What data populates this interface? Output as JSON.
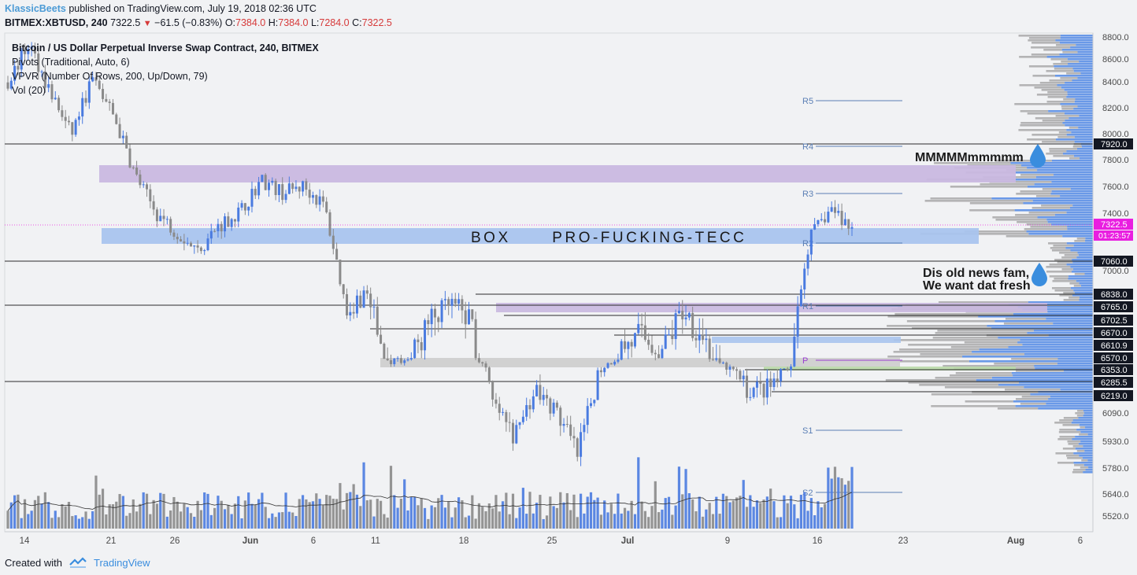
{
  "header": {
    "author": "KlassicBeets",
    "published_text": "published on TradingView.com, July 19, 2018 02:36 UTC",
    "symbol": "BITMEX:XBTUSD, 240",
    "last": "7322.5",
    "change": "−61.5 (−0.83%)",
    "o_label": "O:",
    "o_value": "7384.0",
    "h_label": "H:",
    "h_value": "7384.0",
    "l_label": "L:",
    "l_value": "7284.0",
    "c_label": "C:",
    "c_value": "7322.5"
  },
  "legend": {
    "title": "Bitcoin / US Dollar Perpetual Inverse Swap Contract, 240, BITMEX",
    "pivots": "Pivots (Traditional, Auto, 6)",
    "vpvr": "VPVR (Number Of Rows, 200, Up/Down, 79)",
    "vol": "Vol (20)"
  },
  "footer": {
    "created_with": "Created with",
    "brand": "TradingView"
  },
  "colors": {
    "bg": "#f1f2f4",
    "up": "#4a7be0",
    "down": "#8a8a8a",
    "box_blue": "#a9c4ee",
    "box_purple": "#c9b8e0",
    "box_gray": "#cfcfcf",
    "pivot_line": "#5b7fb5",
    "annotation_text": "#1a1a1a",
    "drop_icon": "#3a8dde",
    "last_price_label": "#e91ee0"
  },
  "chart_data": {
    "type": "candlestick",
    "title": "Bitcoin / US Dollar Perpetual Inverse Swap Contract, 240, BITMEX",
    "x_tick_labels": [
      "14",
      "21",
      "26",
      "Jun",
      "6",
      "11",
      "18",
      "25",
      "Jul",
      "9",
      "16",
      "23",
      "Aug",
      "6"
    ],
    "y_tick_labels": [
      "8800.0",
      "8600.0",
      "8400.0",
      "8200.0",
      "8000.0",
      "7800.0",
      "7600.0",
      "7400.0",
      "7000.0",
      "6090.0",
      "5930.0",
      "5780.0",
      "5640.0",
      "5520.0"
    ],
    "highlighted_levels": [
      "7920.0",
      "7060.0",
      "6838.0",
      "6765.0",
      "6702.5",
      "6670.0",
      "6610.9",
      "6570.0",
      "6353.0",
      "6285.5",
      "6219.0"
    ],
    "last_price_label": "7322.5",
    "countdown_label": "01:23:57",
    "pivot_labels": [
      "R5",
      "R4",
      "R3",
      "R2",
      "R1",
      "P",
      "S1",
      "S2"
    ],
    "price_path": [
      [
        "14",
        8450
      ],
      [
        "15",
        8750
      ],
      [
        "17",
        8380
      ],
      [
        "19",
        8050
      ],
      [
        "21",
        8480
      ],
      [
        "22",
        8200
      ],
      [
        "23",
        7750
      ],
      [
        "24",
        7450
      ],
      [
        "26",
        7300
      ],
      [
        "28",
        7150
      ],
      [
        "29",
        7350
      ],
      [
        "Jun 1",
        7450
      ],
      [
        "Jun 4",
        7700
      ],
      [
        "Jun 6",
        7600
      ],
      [
        "Jun 8",
        7650
      ],
      [
        "Jun 10",
        7500
      ],
      [
        "Jun 11",
        6750
      ],
      [
        "Jun 12",
        6850
      ],
      [
        "Jun 14",
        6500
      ],
      [
        "Jun 16",
        6550
      ],
      [
        "Jun 18",
        6700
      ],
      [
        "Jun 20",
        6780
      ],
      [
        "Jun 22",
        6700
      ],
      [
        "Jun 23",
        6150
      ],
      [
        "Jun 24",
        5950
      ],
      [
        "Jun 25",
        6250
      ],
      [
        "Jun 27",
        6100
      ],
      [
        "Jun 28",
        5850
      ],
      [
        "Jun 30",
        6350
      ],
      [
        "Jul 2",
        6600
      ],
      [
        "Jul 4",
        6650
      ],
      [
        "Jul 6",
        6600
      ],
      [
        "Jul 8",
        6750
      ],
      [
        "Jul 10",
        6650
      ],
      [
        "Jul 11",
        6400
      ],
      [
        "Jul 12",
        6250
      ],
      [
        "Jul 14",
        6250
      ],
      [
        "Jul 16",
        6350
      ],
      [
        "Jul 17",
        7250
      ],
      [
        "Jul 18",
        7480
      ],
      [
        "Jul 19",
        7322.5
      ]
    ],
    "annotations": [
      "BOX      PRO-FUCKING-TECC",
      "MMMMMmmmmm",
      "Dis old news fam,",
      "We want dat fresh"
    ]
  }
}
